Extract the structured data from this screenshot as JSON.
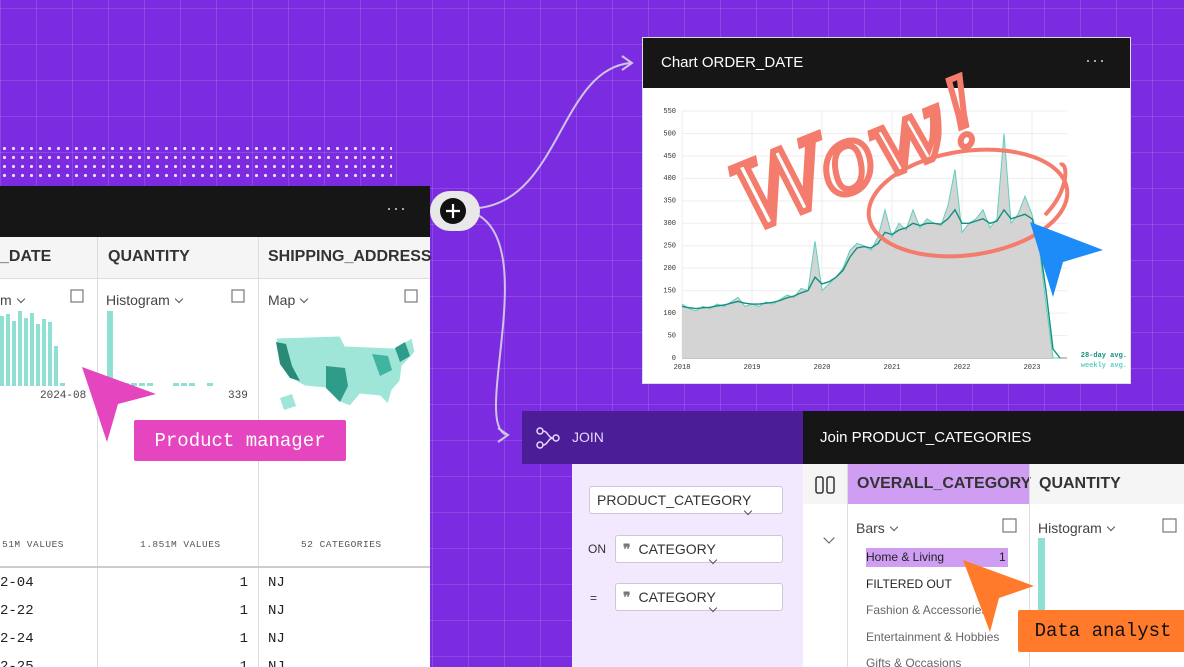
{
  "left_table": {
    "columns": [
      "_DATE",
      "QUANTITY",
      "SHIPPING_ADDRESS"
    ],
    "summary_types": [
      "m",
      "Histogram",
      "Map"
    ],
    "axis_labels": [
      "2024-08",
      "339"
    ],
    "footers": [
      "51M VALUES",
      "1.851M VALUES",
      "52 CATEGORIES"
    ],
    "rows": [
      [
        "2-04",
        "1",
        "NJ"
      ],
      [
        "2-22",
        "1",
        "NJ"
      ],
      [
        "2-24",
        "1",
        "NJ"
      ],
      [
        "2-25",
        "1",
        "NJ"
      ]
    ]
  },
  "labels": {
    "product_manager": "Product manager",
    "data_analyst": "Data analyst"
  },
  "chart_panel": {
    "title": "Chart ORDER_DATE",
    "annotation": "Wow!",
    "chart_data": {
      "type": "line",
      "x": [
        2018.0,
        2018.1,
        2018.2,
        2018.3,
        2018.4,
        2018.5,
        2018.6,
        2018.7,
        2018.8,
        2018.9,
        2019.0,
        2019.1,
        2019.2,
        2019.3,
        2019.4,
        2019.5,
        2019.6,
        2019.7,
        2019.8,
        2019.9,
        2020.0,
        2020.1,
        2020.2,
        2020.3,
        2020.4,
        2020.5,
        2020.6,
        2020.7,
        2020.8,
        2020.9,
        2021.0,
        2021.1,
        2021.2,
        2021.3,
        2021.4,
        2021.5,
        2021.6,
        2021.7,
        2021.8,
        2021.9,
        2022.0,
        2022.1,
        2022.2,
        2022.3,
        2022.4,
        2022.5,
        2022.6,
        2022.7,
        2022.8,
        2022.9,
        2023.0,
        2023.1,
        2023.2,
        2023.3,
        2023.4
      ],
      "series": [
        {
          "name": "weekly avg.",
          "color": "#5fcfbd",
          "values": [
            120,
            110,
            105,
            115,
            110,
            120,
            115,
            125,
            135,
            115,
            120,
            115,
            125,
            120,
            130,
            140,
            135,
            155,
            150,
            260,
            150,
            165,
            180,
            200,
            240,
            255,
            250,
            240,
            270,
            330,
            270,
            300,
            285,
            330,
            290,
            310,
            300,
            295,
            340,
            420,
            280,
            300,
            310,
            330,
            290,
            310,
            500,
            300,
            320,
            360,
            320,
            250,
            120,
            0,
            0
          ]
        },
        {
          "name": "28-day avg.",
          "color": "#168f80",
          "values": [
            115,
            112,
            110,
            112,
            113,
            116,
            118,
            122,
            126,
            122,
            120,
            120,
            122,
            124,
            128,
            134,
            138,
            145,
            150,
            180,
            165,
            170,
            180,
            195,
            225,
            245,
            248,
            245,
            255,
            280,
            275,
            285,
            290,
            300,
            295,
            300,
            300,
            298,
            310,
            330,
            300,
            300,
            305,
            310,
            300,
            305,
            330,
            310,
            315,
            320,
            310,
            260,
            150,
            20,
            0
          ]
        }
      ],
      "xlim": [
        2018,
        2023.5
      ],
      "xticks": [
        2018,
        2019,
        2020,
        2021,
        2022,
        2023
      ],
      "ylim": [
        0,
        550
      ],
      "yticks": [
        0,
        50,
        100,
        150,
        200,
        250,
        300,
        350,
        400,
        450,
        500,
        550
      ],
      "grid": true
    }
  },
  "join_panel": {
    "title": "JOIN",
    "fields": [
      "PRODUCT_CATEGORY",
      "CATEGORY",
      "CATEGORY"
    ],
    "operators": [
      "ON",
      "="
    ]
  },
  "result_panel": {
    "title": "Join PRODUCT_CATEGORIES",
    "columns": [
      "OVERALL_CATEGORY",
      "QUANTITY"
    ],
    "summary_types": [
      "Bars",
      "Histogram"
    ],
    "categories": [
      "Home & Living",
      "FILTERED OUT",
      "Fashion & Accessories",
      "Entertainment & Hobbies",
      "Gifts & Occasions"
    ],
    "highlight_count": "1"
  }
}
